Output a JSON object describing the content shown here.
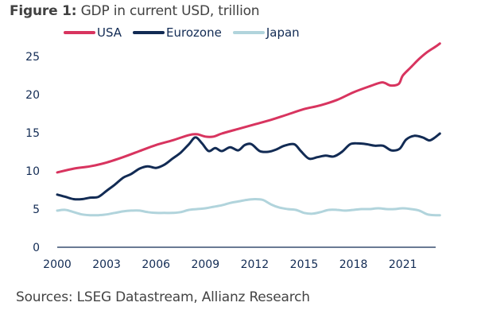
{
  "header": {
    "figure_label": "Figure 1:",
    "title_text": " GDP  in current USD, trillion"
  },
  "footer": {
    "source": "Sources: LSEG Datastream, Allianz Research"
  },
  "chart_data": {
    "type": "line",
    "title": "Figure 1: GDP in current USD, trillion",
    "xlabel": "",
    "ylabel": "",
    "xlim": [
      2000,
      2024
    ],
    "ylim": [
      0,
      25
    ],
    "x_ticks": [
      "2000",
      "2003",
      "2006",
      "2009",
      "2012",
      "2015",
      "2018",
      "2021"
    ],
    "x_tick_values": [
      2000,
      2003,
      2006,
      2009,
      2012,
      2015,
      2018,
      2021
    ],
    "y_ticks": [
      "0",
      "5",
      "10",
      "15",
      "20",
      "25"
    ],
    "y_tick_values": [
      0,
      5,
      10,
      15,
      20,
      25
    ],
    "grid": false,
    "legend": "top",
    "series": [
      {
        "name": "USA",
        "color": "#d8345f",
        "x": [
          2000,
          2001,
          2002,
          2003,
          2004,
          2005,
          2006,
          2007,
          2008,
          2008.5,
          2009,
          2009.5,
          2010,
          2011,
          2012,
          2013,
          2014,
          2015,
          2016,
          2017,
          2018,
          2019,
          2019.75,
          2020.25,
          2020.75,
          2021,
          2021.5,
          2022,
          2022.5,
          2023,
          2023.25
        ],
        "values": [
          9.8,
          10.3,
          10.6,
          11.1,
          11.8,
          12.6,
          13.4,
          14.0,
          14.7,
          14.8,
          14.5,
          14.5,
          14.9,
          15.5,
          16.1,
          16.7,
          17.4,
          18.1,
          18.6,
          19.3,
          20.3,
          21.1,
          21.6,
          21.2,
          21.4,
          22.5,
          23.6,
          24.7,
          25.6,
          26.3,
          26.7
        ]
      },
      {
        "name": "Eurozone",
        "color": "#122b54",
        "x": [
          2000,
          2000.5,
          2001,
          2001.5,
          2002,
          2002.5,
          2003,
          2003.5,
          2004,
          2004.5,
          2005,
          2005.5,
          2006,
          2006.5,
          2007,
          2007.5,
          2008,
          2008.4,
          2008.8,
          2009.2,
          2009.6,
          2010,
          2010.5,
          2011,
          2011.4,
          2011.8,
          2012.3,
          2012.8,
          2013.3,
          2013.8,
          2014.4,
          2014.8,
          2015.3,
          2015.8,
          2016.3,
          2016.8,
          2017.3,
          2017.8,
          2018.3,
          2018.8,
          2019.3,
          2019.8,
          2020.3,
          2020.8,
          2021.2,
          2021.7,
          2022.2,
          2022.6,
          2022.9,
          2023.25
        ],
        "values": [
          6.9,
          6.6,
          6.3,
          6.3,
          6.5,
          6.6,
          7.4,
          8.2,
          9.1,
          9.6,
          10.3,
          10.6,
          10.4,
          10.8,
          11.6,
          12.4,
          13.5,
          14.4,
          13.6,
          12.6,
          13.0,
          12.6,
          13.1,
          12.7,
          13.4,
          13.5,
          12.6,
          12.5,
          12.8,
          13.3,
          13.5,
          12.6,
          11.6,
          11.8,
          12.0,
          11.9,
          12.5,
          13.5,
          13.6,
          13.5,
          13.3,
          13.3,
          12.7,
          12.9,
          14.1,
          14.6,
          14.4,
          14.0,
          14.3,
          14.9
        ]
      },
      {
        "name": "Japan",
        "color": "#b1d4dc",
        "x": [
          2000,
          2000.5,
          2001,
          2001.5,
          2002,
          2002.5,
          2003,
          2003.5,
          2004,
          2004.5,
          2005,
          2005.5,
          2006,
          2006.5,
          2007,
          2007.5,
          2008,
          2008.5,
          2009,
          2009.5,
          2010,
          2010.5,
          2011,
          2011.5,
          2012,
          2012.5,
          2013,
          2013.5,
          2014,
          2014.5,
          2015,
          2015.5,
          2016,
          2016.5,
          2017,
          2017.5,
          2018,
          2018.5,
          2019,
          2019.5,
          2020,
          2020.5,
          2021,
          2021.5,
          2022,
          2022.5,
          2023,
          2023.25
        ],
        "values": [
          4.8,
          4.9,
          4.6,
          4.3,
          4.2,
          4.2,
          4.3,
          4.5,
          4.7,
          4.8,
          4.8,
          4.6,
          4.5,
          4.5,
          4.5,
          4.6,
          4.9,
          5.0,
          5.1,
          5.3,
          5.5,
          5.8,
          6.0,
          6.2,
          6.3,
          6.2,
          5.6,
          5.2,
          5.0,
          4.9,
          4.5,
          4.4,
          4.6,
          4.9,
          4.9,
          4.8,
          4.9,
          5.0,
          5.0,
          5.1,
          5.0,
          5.0,
          5.1,
          5.0,
          4.8,
          4.3,
          4.2,
          4.2
        ]
      }
    ]
  }
}
